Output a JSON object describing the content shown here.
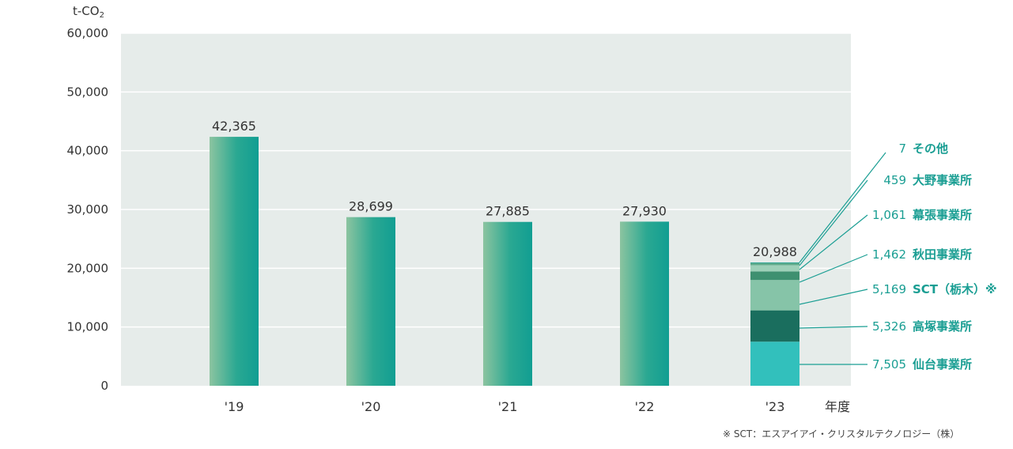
{
  "chart_data": {
    "type": "bar",
    "unit": "t-CO",
    "unit_sub": "2",
    "xlabel": "年度",
    "ylim": [
      0,
      60000
    ],
    "yticks": [
      0,
      10000,
      20000,
      30000,
      40000,
      50000,
      60000
    ],
    "ytick_labels": [
      "0",
      "10,000",
      "20,000",
      "30,000",
      "40,000",
      "50,000",
      "60,000"
    ],
    "grid": true,
    "categories": [
      "'19",
      "'20",
      "'21",
      "'22",
      "'23"
    ],
    "values": [
      42365,
      28699,
      27885,
      27930,
      20988
    ],
    "value_labels": [
      "42,365",
      "28,699",
      "27,885",
      "27,930",
      "20,988"
    ],
    "breakdown_2023": [
      {
        "value": 7505,
        "value_label": "7,505",
        "name": "仙台事業所",
        "color": "#32c0bc"
      },
      {
        "value": 5326,
        "value_label": "5,326",
        "name": "高塚事業所",
        "color": "#1a6e5e"
      },
      {
        "value": 5169,
        "value_label": "5,169",
        "name": "SCT（栃木）※",
        "color": "#86c4a8"
      },
      {
        "value": 1462,
        "value_label": "1,462",
        "name": "秋田事業所",
        "color": "#3e9070"
      },
      {
        "value": 1061,
        "value_label": "1,061",
        "name": "幕張事業所",
        "color": "#9dd0b8"
      },
      {
        "value": 459,
        "value_label": "459",
        "name": "大野事業所",
        "color": "#5faa8a"
      },
      {
        "value": 7,
        "value_label": "7",
        "name": "その他",
        "color": "#2aa89c"
      }
    ]
  },
  "footnote": "※ SCT：エスアイアイ・クリスタルテクノロジー（株）",
  "colors": {
    "plot_bg": "#e6ecea",
    "grid": "#ffffff",
    "bar_left": "#8cc4a0",
    "bar_right": "#119e92",
    "leader": "#1a9e93"
  }
}
